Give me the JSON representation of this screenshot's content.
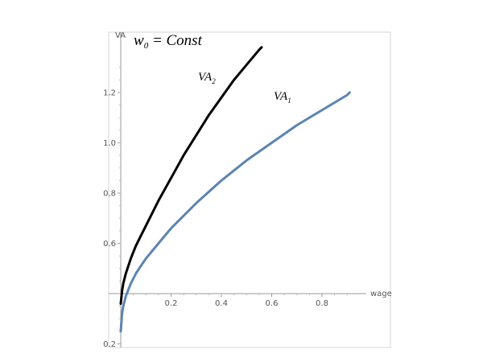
{
  "chart_data": {
    "type": "line",
    "title": "",
    "xlabel": "wage",
    "ylabel": "VA",
    "xlim": [
      -0.05,
      1.0
    ],
    "ylim": [
      0.2,
      1.35
    ],
    "x_axis_at_y": 0.4,
    "x_ticks": [
      0.2,
      0.4,
      0.6,
      0.8
    ],
    "x_tick_labels": [
      "0.2",
      "0.4",
      "0.6",
      "0.8"
    ],
    "y_ticks": [
      0.2,
      0.6,
      0.8,
      1.0,
      1.2
    ],
    "y_tick_labels": [
      "0.2",
      "0.6",
      "0.8",
      "1.0",
      "1.2"
    ],
    "grid": false,
    "legend": "none",
    "annotations": {
      "top": {
        "base": "w",
        "sub": "0",
        "rest": " = Const"
      },
      "va2": {
        "base": "VA",
        "sub": "2"
      },
      "va1": {
        "base": "VA",
        "sub": "1"
      }
    },
    "series": [
      {
        "color": "#000000",
        "x": [
          0.0,
          0.005,
          0.01,
          0.02,
          0.04,
          0.06,
          0.08,
          0.1,
          0.15,
          0.2,
          0.25,
          0.3,
          0.35,
          0.4,
          0.45,
          0.5,
          0.55,
          0.56
        ],
        "y": [
          0.36,
          0.41,
          0.44,
          0.48,
          0.54,
          0.59,
          0.63,
          0.67,
          0.77,
          0.86,
          0.95,
          1.03,
          1.11,
          1.18,
          1.25,
          1.31,
          1.37,
          1.38
        ]
      },
      {
        "color": "#5b84b1",
        "x": [
          0.0,
          0.005,
          0.01,
          0.02,
          0.04,
          0.06,
          0.08,
          0.1,
          0.15,
          0.2,
          0.3,
          0.4,
          0.5,
          0.6,
          0.7,
          0.8,
          0.9,
          0.91
        ],
        "y": [
          0.25,
          0.32,
          0.35,
          0.39,
          0.44,
          0.48,
          0.51,
          0.54,
          0.6,
          0.66,
          0.76,
          0.85,
          0.93,
          1.0,
          1.07,
          1.13,
          1.19,
          1.2
        ]
      }
    ]
  }
}
